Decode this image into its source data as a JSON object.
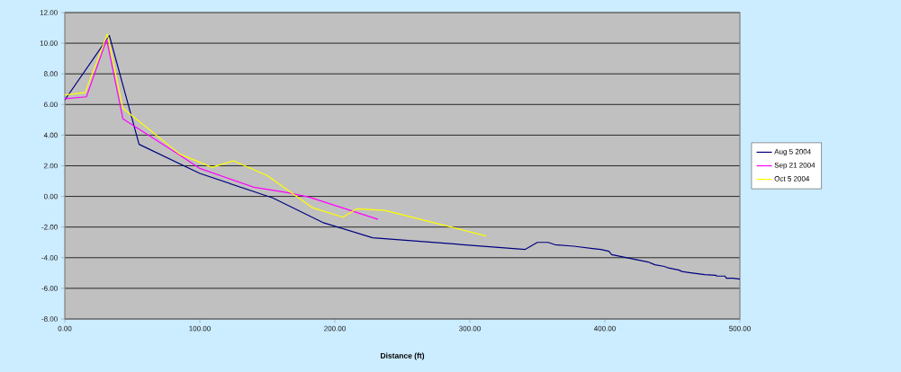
{
  "chart_data": {
    "type": "line",
    "xlabel": "Distance (ft)",
    "xlim": [
      0,
      500
    ],
    "ylim": [
      -8,
      12
    ],
    "xticks": [
      {
        "value": 0,
        "label": "0.00"
      },
      {
        "value": 100,
        "label": "100.00"
      },
      {
        "value": 200,
        "label": "200.00"
      },
      {
        "value": 300,
        "label": "300.00"
      },
      {
        "value": 400,
        "label": "400.00"
      },
      {
        "value": 500,
        "label": "500.00"
      }
    ],
    "yticks": [
      {
        "value": -8,
        "label": "-8.00"
      },
      {
        "value": -6,
        "label": "-6.00"
      },
      {
        "value": -4,
        "label": "-4.00"
      },
      {
        "value": -2,
        "label": "-2.00"
      },
      {
        "value": 0,
        "label": "0.00"
      },
      {
        "value": 2,
        "label": "2.00"
      },
      {
        "value": 4,
        "label": "4.00"
      },
      {
        "value": 6,
        "label": "6.00"
      },
      {
        "value": 8,
        "label": "8.00"
      },
      {
        "value": 10,
        "label": "10.00"
      },
      {
        "value": 12,
        "label": "12.00"
      }
    ],
    "grid": "y",
    "legend": "right",
    "marker": "none",
    "line_style": "solid",
    "series": [
      {
        "name": "Aug 5 2004",
        "color": "#000080",
        "x": [
          0,
          33,
          55,
          100,
          154,
          191,
          228,
          341,
          350,
          358,
          363,
          377,
          391,
          397,
          403,
          405,
          432,
          437,
          444,
          447,
          455,
          457,
          465,
          474,
          482,
          483,
          489,
          490,
          495,
          500
        ],
        "values": [
          6.3,
          10.5,
          3.4,
          1.5,
          -0.1,
          -1.7,
          -2.7,
          -3.46,
          -3.0,
          -3.0,
          -3.15,
          -3.25,
          -3.4,
          -3.46,
          -3.58,
          -3.8,
          -4.28,
          -4.46,
          -4.57,
          -4.67,
          -4.81,
          -4.9,
          -5.0,
          -5.1,
          -5.15,
          -5.2,
          -5.2,
          -5.34,
          -5.34,
          -5.4
        ]
      },
      {
        "name": "Sep 21 2004",
        "color": "#ff00ff",
        "x": [
          0,
          16,
          31,
          43,
          85,
          100,
          140,
          165,
          181,
          232
        ],
        "values": [
          6.38,
          6.5,
          10.25,
          5.07,
          2.7,
          1.83,
          0.6,
          0.25,
          -0.05,
          -1.5
        ]
      },
      {
        "name": "Oct 5 2004",
        "color": "#ffff00",
        "x": [
          0,
          15,
          31.5,
          43,
          85,
          109,
          125,
          150,
          183,
          206,
          216,
          237,
          312
        ],
        "values": [
          6.63,
          6.77,
          10.6,
          5.75,
          2.77,
          1.9,
          2.32,
          1.35,
          -0.72,
          -1.36,
          -0.81,
          -0.91,
          -2.58
        ]
      }
    ]
  }
}
